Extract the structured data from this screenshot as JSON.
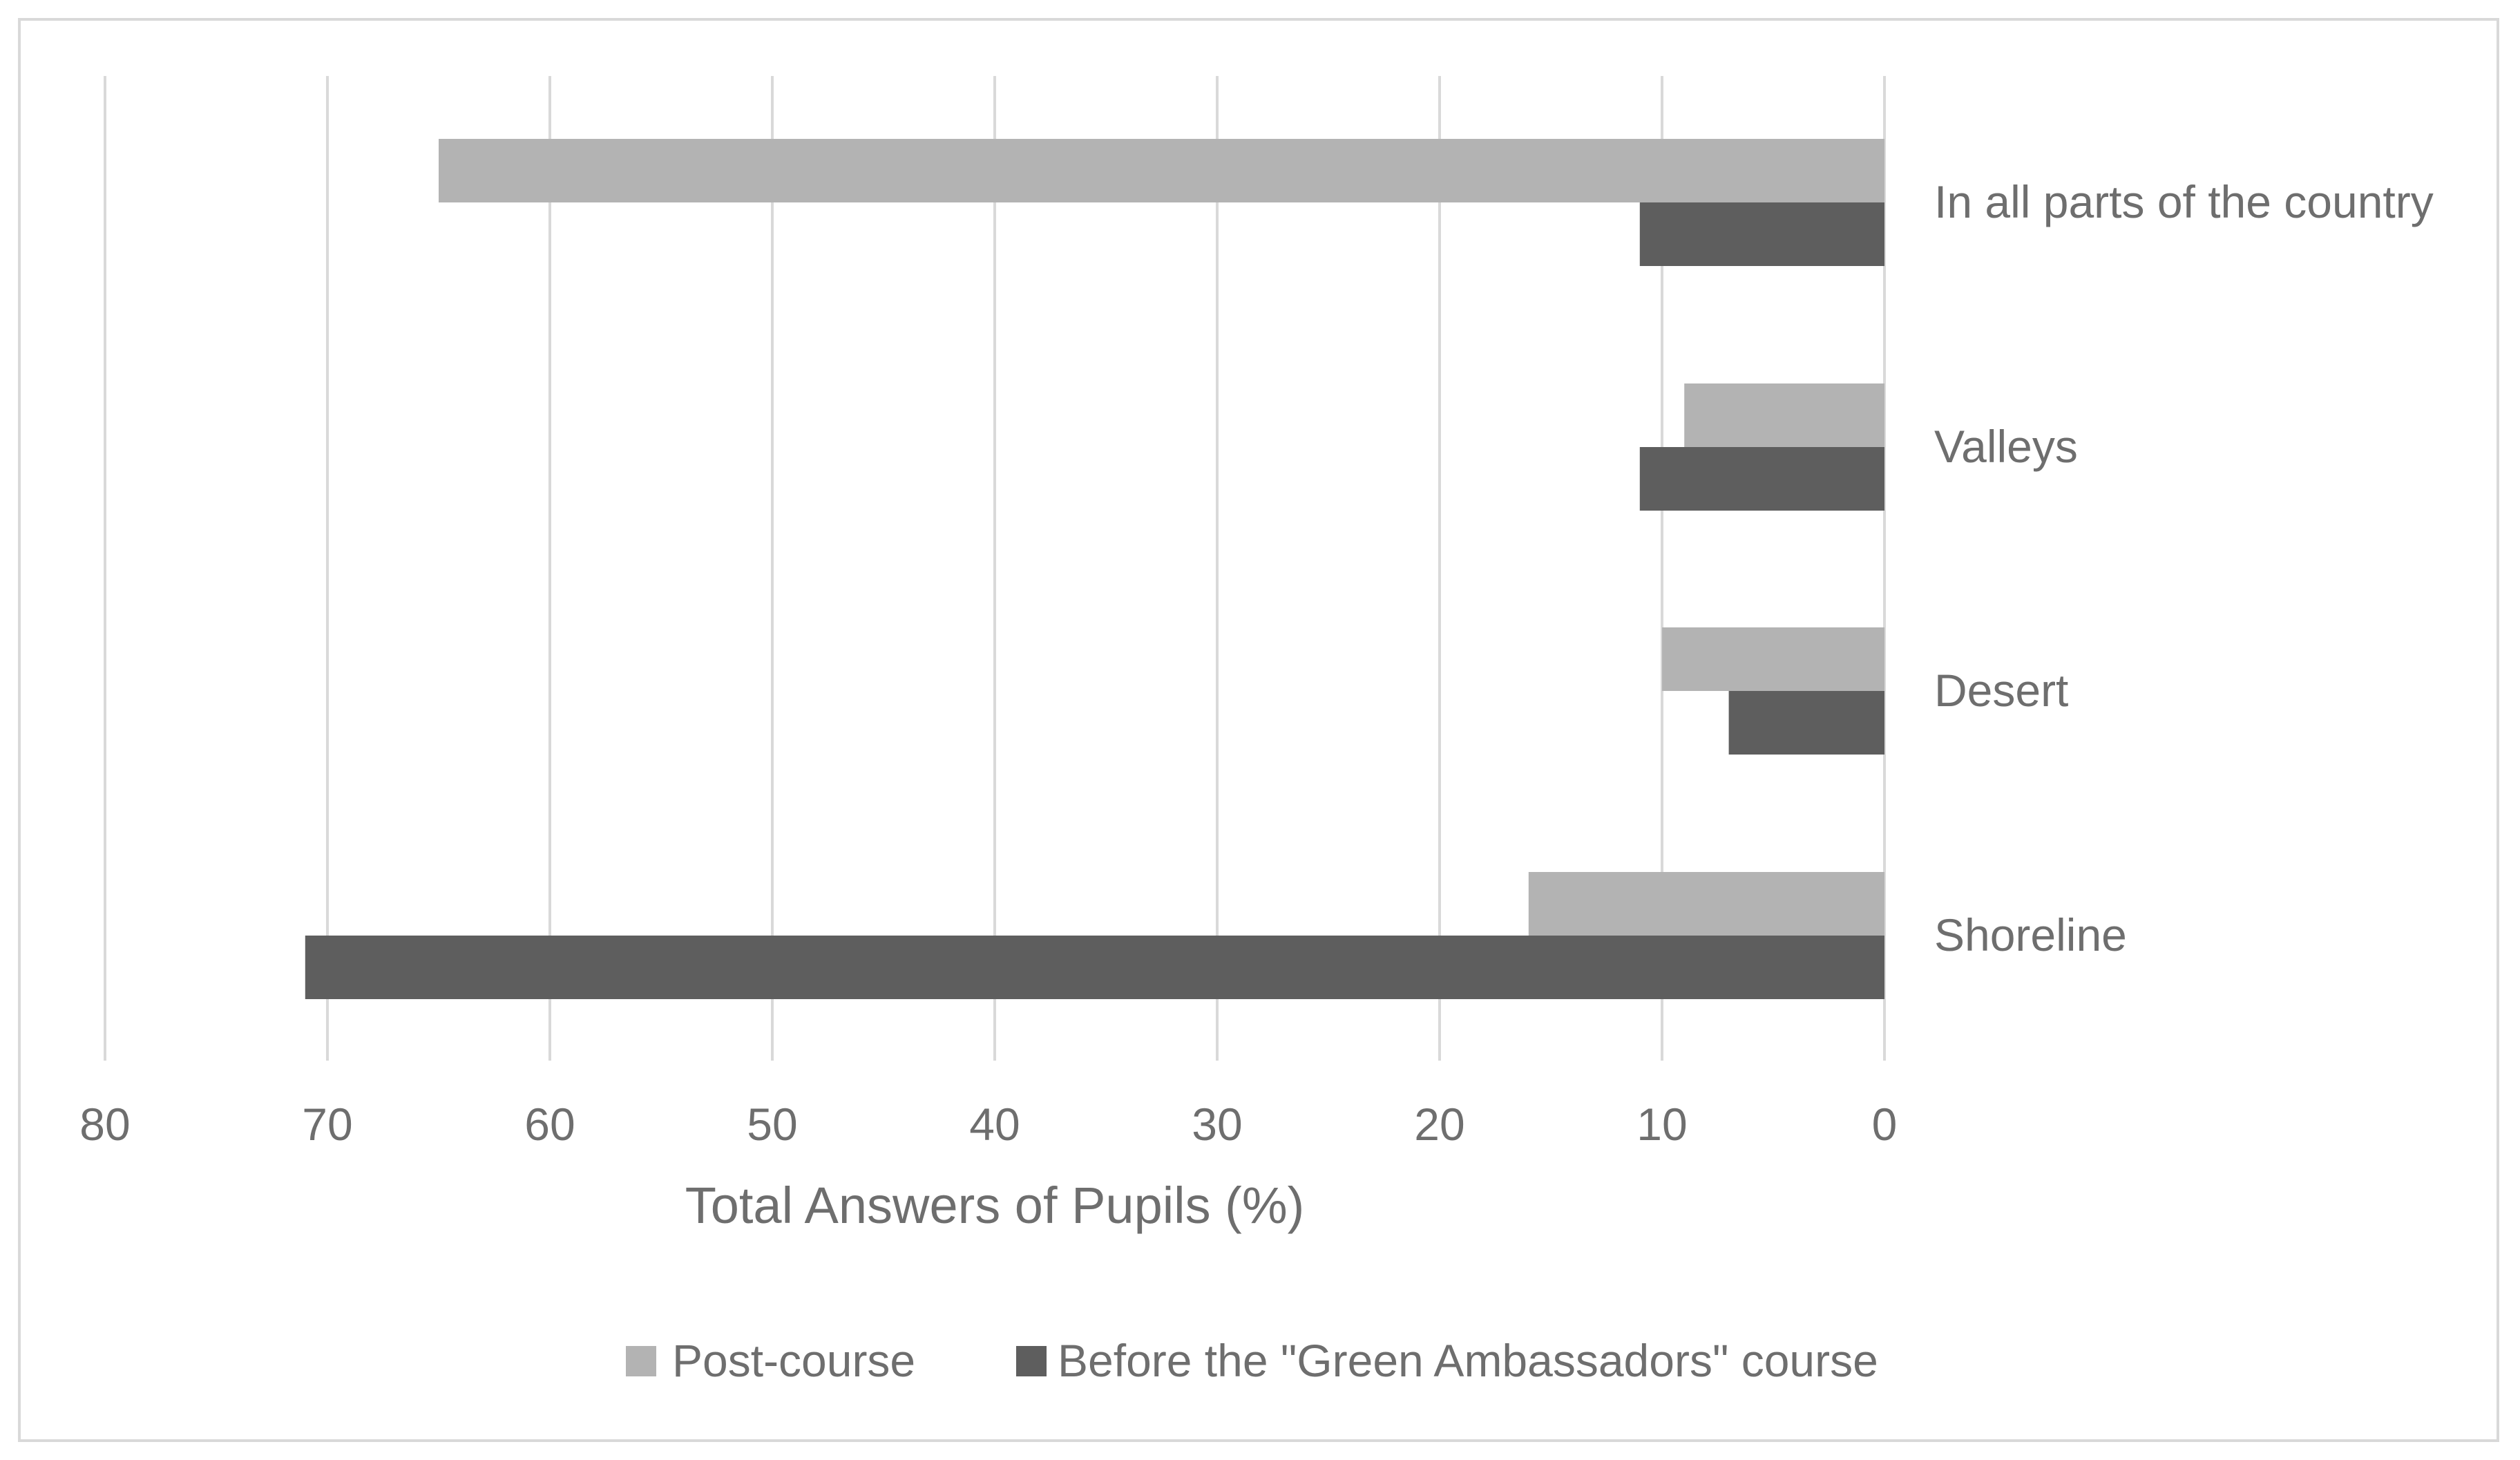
{
  "chart_data": {
    "type": "bar",
    "orientation": "horizontal",
    "x_reversed": true,
    "categories": [
      "In all parts of the country",
      "Valleys",
      "Desert",
      "Shoreline"
    ],
    "series": [
      {
        "name": "Post-course",
        "color": "#b3b3b3",
        "values": [
          65,
          9,
          10,
          16
        ]
      },
      {
        "name": "Before the \"Green Ambassadors\" course",
        "color": "#5e5e5e",
        "values": [
          11,
          11,
          7,
          71
        ]
      }
    ],
    "xlim": [
      0,
      80
    ],
    "xticks": [
      "80",
      "70",
      "60",
      "50",
      "40",
      "30",
      "20",
      "10",
      "0"
    ],
    "xlabel": "Total  Answers of Pupils (%)",
    "ylabel": "",
    "title": "",
    "grid": true,
    "legend_position": "bottom"
  }
}
